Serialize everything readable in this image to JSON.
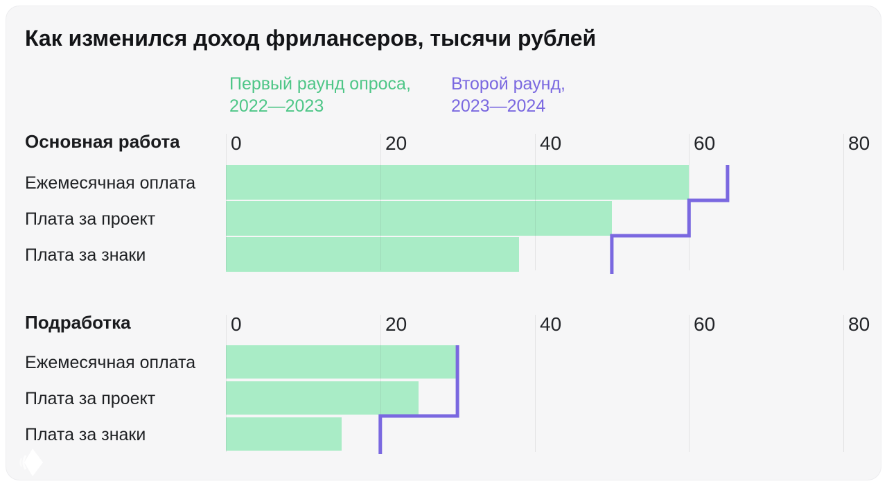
{
  "title": "Как изменился доход фрилансеров, тысячи рублей",
  "legend": [
    {
      "line1": "Первый раунд опроса,",
      "line2": "2022—2023",
      "color": "#4ec687"
    },
    {
      "line1": "Второй раунд,",
      "line2": "2023—2024",
      "color": "#7a68e0"
    }
  ],
  "colors": {
    "card_background": "#f6f6f7",
    "bar_fill_green": "#a9ecc6",
    "step_line_purple": "#7a68e0",
    "title_text": "#131417",
    "label_text": "#1e2023"
  },
  "icons": {
    "logo": "gem-icon"
  },
  "chart_data": [
    {
      "type": "bar",
      "orientation": "horizontal",
      "group_title": "Основная работа",
      "categories": [
        "Ежемесячная оплата",
        "Плата за проект",
        "Плата за знаки"
      ],
      "series": [
        {
          "name": "Первый раунд опроса, 2022—2023",
          "style": "bar",
          "color": "#a9ecc6",
          "values": [
            60,
            50,
            38
          ]
        },
        {
          "name": "Второй раунд, 2023—2024",
          "style": "step-line",
          "color": "#7a68e0",
          "values": [
            65,
            60,
            50
          ]
        }
      ],
      "xlim": [
        0,
        80
      ],
      "xticks": [
        0,
        20,
        40,
        60,
        80
      ],
      "grid": true,
      "legend_position": "top"
    },
    {
      "type": "bar",
      "orientation": "horizontal",
      "group_title": "Подработка",
      "categories": [
        "Ежемесячная оплата",
        "Плата за проект",
        "Плата за знаки"
      ],
      "series": [
        {
          "name": "Первый раунд опроса, 2022—2023",
          "style": "bar",
          "color": "#a9ecc6",
          "values": [
            30,
            25,
            15
          ]
        },
        {
          "name": "Второй раунд, 2023—2024",
          "style": "step-line",
          "color": "#7a68e0",
          "values": [
            30,
            30,
            20
          ]
        }
      ],
      "xlim": [
        0,
        80
      ],
      "xticks": [
        0,
        20,
        40,
        60,
        80
      ],
      "grid": true,
      "legend_position": "top"
    }
  ]
}
